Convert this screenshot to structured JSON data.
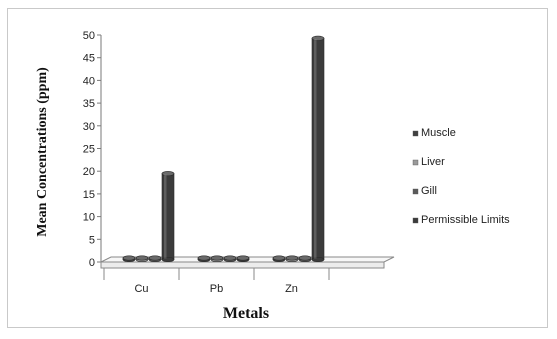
{
  "chart_data": {
    "type": "bar",
    "title": "",
    "xlabel": "Metals",
    "ylabel": "Mean Concentrations (ppm)",
    "categories": [
      "Cu",
      "Pb",
      "Zn"
    ],
    "ylim": [
      0,
      50
    ],
    "yticks": [
      "0",
      "5",
      "10",
      "15",
      "20",
      "25",
      "30",
      "35",
      "40",
      "45",
      "50"
    ],
    "grid": false,
    "three_d": true,
    "legend_position": "right",
    "series": [
      {
        "name": "Muscle",
        "values": [
          0.05,
          0.05,
          0.1
        ],
        "color": "#404040"
      },
      {
        "name": "Liver",
        "values": [
          0.05,
          0.05,
          0.1
        ],
        "color": "#9a9a9a"
      },
      {
        "name": "Gill",
        "values": [
          0.05,
          0.05,
          0.1
        ],
        "color": "#5a5a5a"
      },
      {
        "name": "Permissible Limits",
        "values": [
          18.7,
          0.1,
          48.5
        ],
        "color": "#3b3b3b"
      }
    ]
  }
}
